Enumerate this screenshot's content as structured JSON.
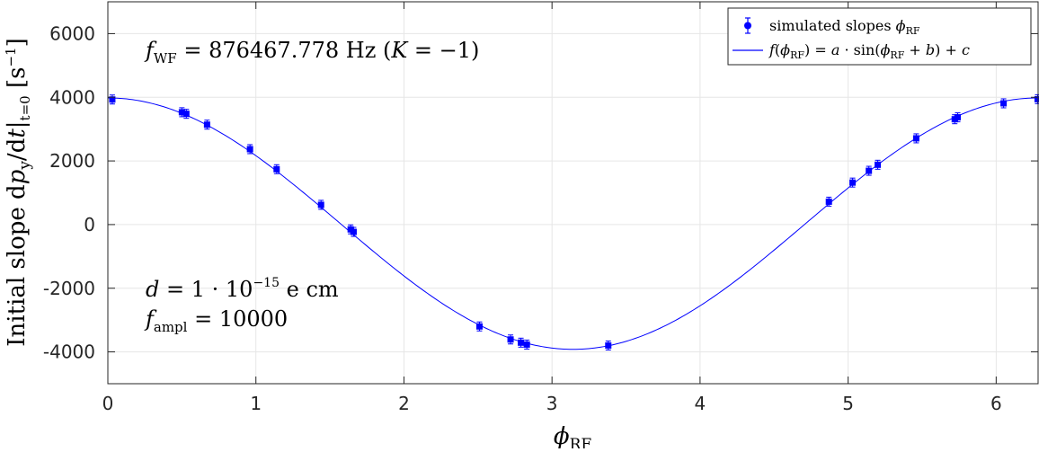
{
  "chart_data": {
    "type": "scatter",
    "title": "",
    "xlabel": "ϕ_RF",
    "ylabel": "Initial slope dp_y/dt|_t=0 [s^-1]",
    "xlim": [
      0,
      6.2832
    ],
    "ylim": [
      -5000,
      7000
    ],
    "x_ticks": [
      "0",
      "1",
      "2",
      "3",
      "4",
      "5",
      "6"
    ],
    "x_tick_values": [
      0,
      1,
      2,
      3,
      4,
      5,
      6
    ],
    "y_ticks": [
      "6000",
      "4000",
      "2000",
      "0",
      "-2000",
      "-4000"
    ],
    "y_tick_values": [
      6000,
      4000,
      2000,
      0,
      -2000,
      -4000
    ],
    "grid": true,
    "legend_position": "top-right",
    "series": [
      {
        "name": "simulated slopes ϕ_RF",
        "kind": "markers-with-errorbars",
        "color": "#0000ff",
        "x": [
          0.03,
          0.5,
          0.53,
          0.67,
          0.96,
          1.14,
          1.44,
          1.64,
          1.66,
          2.51,
          2.72,
          2.79,
          2.83,
          3.38,
          4.87,
          5.03,
          5.14,
          5.2,
          5.46,
          5.72,
          5.74,
          6.05,
          6.28
        ],
        "y": [
          3930,
          3530,
          3480,
          3140,
          2370,
          1740,
          620,
          -150,
          -230,
          -3200,
          -3610,
          -3710,
          -3770,
          -3800,
          720,
          1320,
          1690,
          1880,
          2710,
          3310,
          3370,
          3810,
          3940
        ]
      },
      {
        "name": "f(ϕ_RF) = a · sin(ϕ_RF + b) + c",
        "kind": "line",
        "color": "#0000ff",
        "function": "a*sin(x+b)+c",
        "a": 3950,
        "b": 1.5708,
        "c": 30
      }
    ],
    "annotations": [
      "f_WF = 876467.778 Hz (K = −1)",
      "d = 1 · 10^−15 e cm",
      "f_ampl = 10000"
    ]
  },
  "text": {
    "ylabel_main": "Initial slope d",
    "ylabel_p": "p",
    "ylabel_p_sub": "y",
    "ylabel_div": "/d",
    "ylabel_t": "t",
    "ylabel_bar": "|",
    "ylabel_bar_sub": "t=0",
    "ylabel_unit_open": " [s",
    "ylabel_unit_sup": "−1",
    "ylabel_unit_close": "]",
    "xlabel_phi": "ϕ",
    "xlabel_sub": "RF",
    "annot1_f": "f",
    "annot1_sub": "WF",
    "annot1_eq": " = 876467.778 Hz (",
    "annot1_K": "K",
    "annot1_end": " = −1)",
    "annot2_d": "d",
    "annot2_eq": " = 1 · 10",
    "annot2_sup": "−15",
    "annot2_end": " e cm",
    "annot3_f": "f",
    "annot3_sub": "ampl",
    "annot3_eq": " = 10000",
    "legend1_text": "simulated slopes ",
    "legend1_phi": "ϕ",
    "legend1_sub": "RF",
    "legend2_f": "f",
    "legend2_open": "(",
    "legend2_phi": "ϕ",
    "legend2_sub": "RF",
    "legend2_mid": ") = ",
    "legend2_a": "a",
    "legend2_sin": " · sin(",
    "legend2_phi2": "ϕ",
    "legend2_sub2": "RF",
    "legend2_plus": " + ",
    "legend2_b": "b",
    "legend2_end": ") + ",
    "legend2_c": "c"
  }
}
